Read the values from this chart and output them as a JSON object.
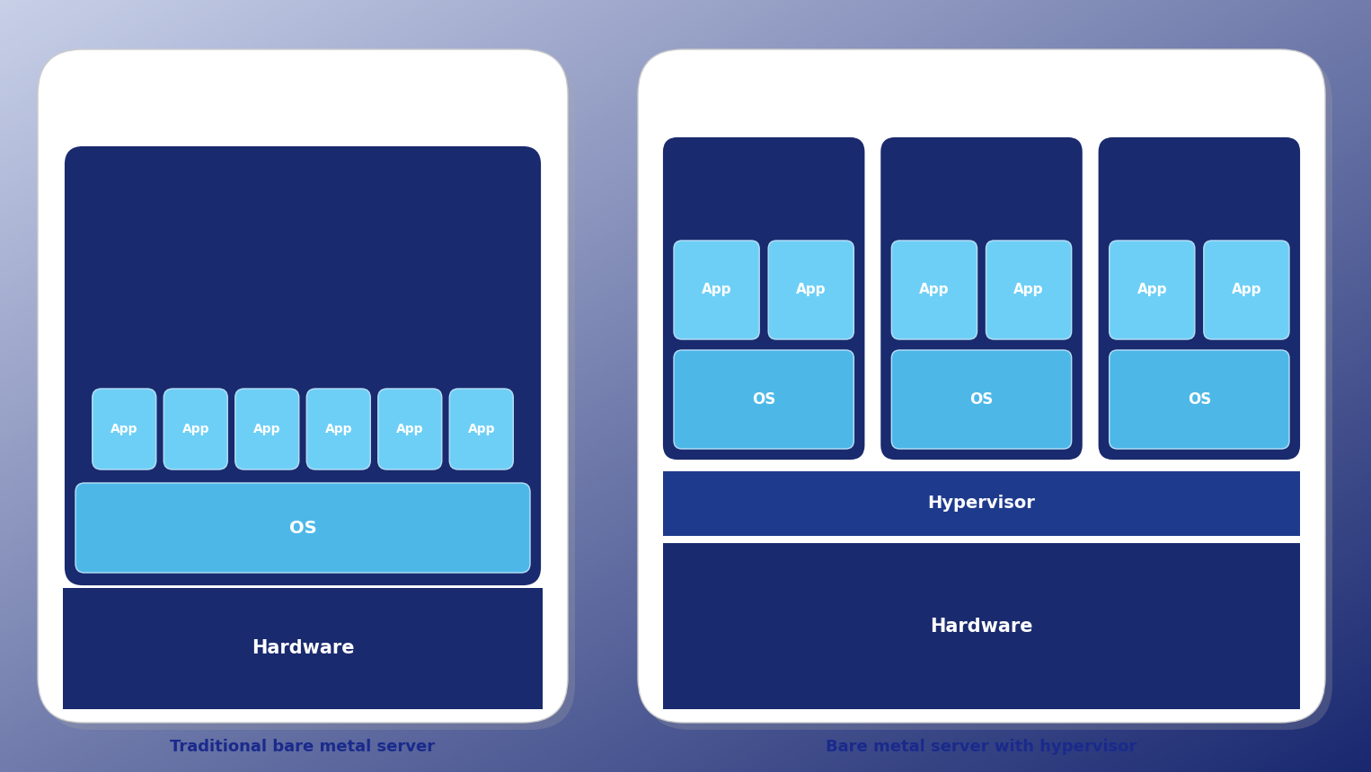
{
  "colors": {
    "dark_navy": "#1a2a6e",
    "navy": "#1e3070",
    "hypervisor_blue": "#1e3a8c",
    "os_blue": "#4db8e8",
    "app_blue": "#6ecff6",
    "app_border": "#b8e0f8",
    "white": "#ffffff",
    "text_label": "#1a2a8c"
  },
  "left_card": {
    "label": "Traditional bare metal server",
    "apps": [
      "App",
      "App",
      "App",
      "App",
      "App",
      "App"
    ],
    "os_label": "OS",
    "hardware_label": "Hardware"
  },
  "right_card": {
    "label": "Bare metal server with hypervisor",
    "vms": [
      {
        "apps": [
          "App",
          "App"
        ],
        "os": "OS"
      },
      {
        "apps": [
          "App",
          "App"
        ],
        "os": "OS"
      },
      {
        "apps": [
          "App",
          "App"
        ],
        "os": "OS"
      }
    ],
    "hypervisor_label": "Hypervisor",
    "hardware_label": "Hardware"
  },
  "fig_w": 15.26,
  "fig_h": 8.6
}
